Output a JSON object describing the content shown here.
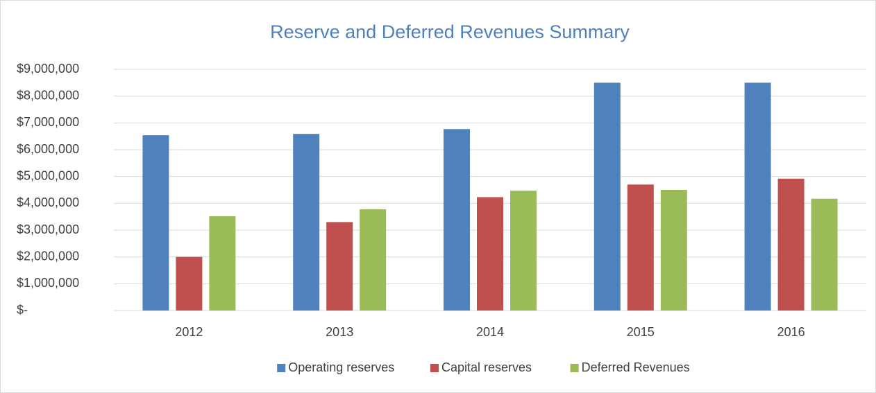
{
  "chart_data": {
    "type": "bar",
    "title": "Reserve and Deferred Revenues Summary",
    "categories": [
      "2012",
      "2013",
      "2014",
      "2015",
      "2016"
    ],
    "series": [
      {
        "name": "Operating reserves",
        "color": "#4f81bd",
        "values": [
          6540000,
          6590000,
          6770000,
          8500000,
          8500000
        ]
      },
      {
        "name": "Capital reserves",
        "color": "#c0504d",
        "values": [
          2000000,
          3300000,
          4230000,
          4700000,
          4920000
        ]
      },
      {
        "name": "Deferred Revenues",
        "color": "#9bbb59",
        "values": [
          3520000,
          3780000,
          4470000,
          4500000,
          4170000
        ]
      }
    ],
    "ylim": [
      0,
      9000000
    ],
    "yticks": [
      {
        "value": 0,
        "label": "$-"
      },
      {
        "value": 1000000,
        "label": "$1,000,000"
      },
      {
        "value": 2000000,
        "label": "$2,000,000"
      },
      {
        "value": 3000000,
        "label": "$3,000,000"
      },
      {
        "value": 4000000,
        "label": "$4,000,000"
      },
      {
        "value": 5000000,
        "label": "$5,000,000"
      },
      {
        "value": 6000000,
        "label": "$6,000,000"
      },
      {
        "value": 7000000,
        "label": "$7,000,000"
      },
      {
        "value": 8000000,
        "label": "$8,000,000"
      },
      {
        "value": 9000000,
        "label": "$9,000,000"
      }
    ],
    "grid": true,
    "legend": "bottom"
  }
}
